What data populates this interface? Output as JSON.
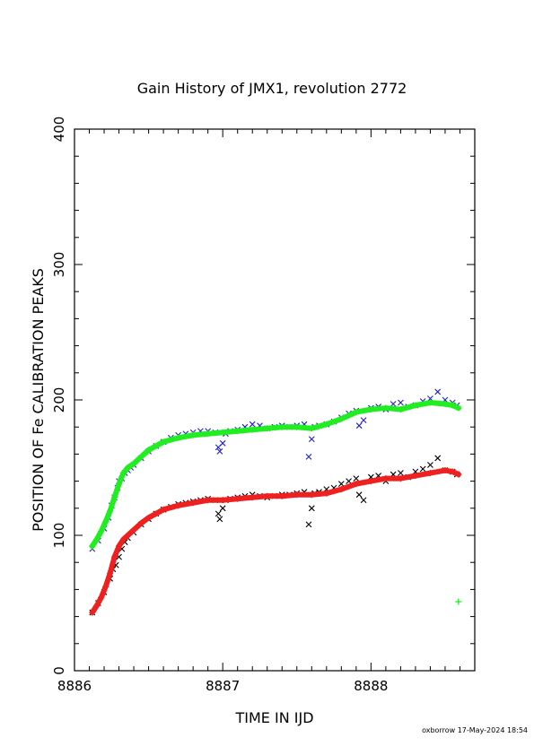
{
  "chart_data": {
    "type": "scatter",
    "title": "Gain History of JMX1, revolution 2772",
    "xlabel": "TIME IN IJD",
    "ylabel": "POSITION OF Fe CALIBRATION PEAKS",
    "xlim": [
      8886,
      8888.7
    ],
    "ylim": [
      0,
      400
    ],
    "x_ticks": [
      "8886",
      "8887",
      "8888"
    ],
    "y_ticks": [
      "0",
      "100",
      "200",
      "300",
      "400"
    ],
    "grid": false,
    "legend": "none",
    "series": [
      {
        "color": "#2020d0",
        "marker": "x",
        "x": [
          8886.12,
          8886.16,
          8886.2,
          8886.23,
          8886.25,
          8886.27,
          8886.29,
          8886.3,
          8886.32,
          8886.34,
          8886.36,
          8886.38,
          8886.4,
          8886.45,
          8886.5,
          8886.55,
          8886.6,
          8886.65,
          8886.7,
          8886.75,
          8886.8,
          8886.85,
          8886.9,
          8886.95,
          8886.97,
          8886.98,
          8887.0,
          8887.02,
          8887.05,
          8887.1,
          8887.15,
          8887.2,
          8887.25,
          8887.3,
          8887.35,
          8887.4,
          8887.45,
          8887.5,
          8887.55,
          8887.58,
          8887.6,
          8887.62,
          8887.65,
          8887.7,
          8887.75,
          8887.8,
          8887.85,
          8887.9,
          8887.92,
          8887.95,
          8888.0,
          8888.05,
          8888.1,
          8888.15,
          8888.2,
          8888.25,
          8888.3,
          8888.35,
          8888.4,
          8888.45,
          8888.5,
          8888.55,
          8888.58
        ],
        "y": [
          90,
          96,
          105,
          113,
          122,
          128,
          135,
          140,
          142,
          146,
          148,
          150,
          152,
          157,
          162,
          166,
          169,
          172,
          174,
          175,
          176,
          177,
          177,
          176,
          165,
          162,
          168,
          175,
          177,
          178,
          180,
          182,
          181,
          179,
          180,
          181,
          180,
          181,
          182,
          158,
          171,
          180,
          181,
          182,
          184,
          187,
          190,
          192,
          181,
          185,
          194,
          195,
          193,
          197,
          198,
          195,
          196,
          199,
          201,
          206,
          200,
          198,
          196
        ]
      },
      {
        "color": "#20ee20",
        "marker": "+",
        "x": [
          8886.12,
          8886.15,
          8886.18,
          8886.21,
          8886.24,
          8886.27,
          8886.3,
          8886.33,
          8886.36,
          8886.4,
          8886.45,
          8886.5,
          8886.55,
          8886.6,
          8886.7,
          8886.8,
          8886.9,
          8887.0,
          8887.1,
          8887.2,
          8887.3,
          8887.4,
          8887.5,
          8887.6,
          8887.7,
          8887.8,
          8887.9,
          8888.0,
          8888.1,
          8888.2,
          8888.3,
          8888.4,
          8888.5,
          8888.55,
          8888.59
        ],
        "y": [
          92,
          97,
          103,
          110,
          118,
          128,
          138,
          146,
          150,
          153,
          158,
          163,
          166,
          169,
          172,
          174,
          175,
          176,
          177,
          178,
          179,
          180,
          180,
          179,
          182,
          186,
          191,
          193,
          194,
          193,
          196,
          198,
          197,
          196,
          194
        ]
      },
      {
        "color": "#000000",
        "marker": "x",
        "x": [
          8886.12,
          8886.16,
          8886.2,
          8886.24,
          8886.26,
          8886.28,
          8886.3,
          8886.32,
          8886.34,
          8886.36,
          8886.4,
          8886.45,
          8886.5,
          8886.55,
          8886.6,
          8886.65,
          8886.7,
          8886.75,
          8886.8,
          8886.85,
          8886.9,
          8886.95,
          8886.97,
          8886.98,
          8887.0,
          8887.02,
          8887.05,
          8887.1,
          8887.15,
          8887.2,
          8887.25,
          8887.3,
          8887.35,
          8887.4,
          8887.45,
          8887.5,
          8887.55,
          8887.58,
          8887.6,
          8887.62,
          8887.65,
          8887.7,
          8887.75,
          8887.8,
          8887.85,
          8887.9,
          8887.92,
          8887.95,
          8888.0,
          8888.05,
          8888.1,
          8888.15,
          8888.2,
          8888.25,
          8888.3,
          8888.35,
          8888.4,
          8888.45,
          8888.5,
          8888.55,
          8888.58
        ],
        "y": [
          43,
          50,
          58,
          68,
          75,
          78,
          84,
          90,
          95,
          98,
          102,
          108,
          112,
          116,
          119,
          121,
          123,
          124,
          125,
          126,
          127,
          126,
          116,
          112,
          120,
          126,
          127,
          128,
          129,
          130,
          129,
          128,
          129,
          130,
          130,
          131,
          132,
          108,
          120,
          131,
          132,
          134,
          135,
          138,
          140,
          142,
          130,
          126,
          143,
          144,
          140,
          145,
          146,
          143,
          147,
          149,
          152,
          157,
          148,
          147,
          145
        ]
      },
      {
        "color": "#ee2020",
        "marker": "+",
        "x": [
          8886.12,
          8886.15,
          8886.18,
          8886.21,
          8886.24,
          8886.27,
          8886.3,
          8886.33,
          8886.36,
          8886.4,
          8886.45,
          8886.5,
          8886.55,
          8886.6,
          8886.7,
          8886.8,
          8886.9,
          8887.0,
          8887.1,
          8887.2,
          8887.3,
          8887.4,
          8887.5,
          8887.6,
          8887.7,
          8887.8,
          8887.9,
          8888.0,
          8888.1,
          8888.2,
          8888.3,
          8888.4,
          8888.5,
          8888.55,
          8888.59
        ],
        "y": [
          43,
          48,
          54,
          62,
          72,
          84,
          92,
          97,
          100,
          104,
          109,
          113,
          116,
          119,
          122,
          124,
          126,
          126,
          127,
          128,
          129,
          129,
          130,
          130,
          131,
          134,
          138,
          140,
          142,
          142,
          144,
          146,
          148,
          147,
          145
        ]
      },
      {
        "color": "#20ee20",
        "marker": "+",
        "x": [
          8888.59
        ],
        "y": [
          51
        ]
      }
    ]
  },
  "footer": "oxborrow 17-May-2024 18:54"
}
